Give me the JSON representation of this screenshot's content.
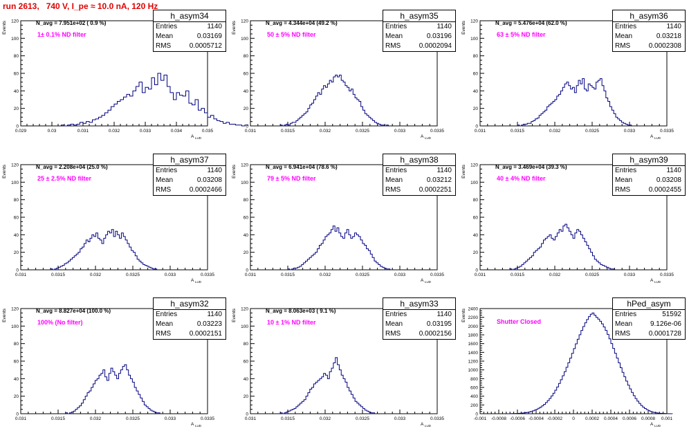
{
  "run_title": "run 2613,   740 V, I_pe ≈ 10.0 nA, 120 Hz",
  "colors": {
    "run_title": "#e00000",
    "filter_label": "#ff00ff",
    "histogram": "#000080"
  },
  "common": {
    "ylabel": "Events",
    "xlabel_main": "A",
    "xlabel_sub": "LUD"
  },
  "chart_data": [
    {
      "type": "bar",
      "name": "h_asym34",
      "navg": "N_avg = 7.951e+02 ( 0.9 %)",
      "filter": "1± 0.1% ND filter",
      "stats": {
        "entries": "1140",
        "mean": "0.03169",
        "rms": "0.0005712"
      },
      "xlim": [
        0.029,
        0.035
      ],
      "ylim": [
        0,
        120
      ],
      "xticks": [
        "0.029",
        "0.03",
        "0.031",
        "0.032",
        "0.033",
        "0.034",
        "0.035"
      ],
      "yticks": [
        "0",
        "20",
        "40",
        "60",
        "80",
        "100",
        "120"
      ],
      "bins": {
        "start": 0.0303,
        "width": 0.0001,
        "values": [
          1,
          0,
          1,
          2,
          1,
          2,
          4,
          3,
          5,
          4,
          7,
          8,
          10,
          12,
          15,
          18,
          22,
          25,
          28,
          30,
          33,
          36,
          34,
          40,
          45,
          50,
          38,
          44,
          42,
          55,
          47,
          60,
          52,
          58,
          45,
          38,
          30,
          38,
          35,
          34,
          40,
          26,
          24,
          30,
          18,
          20,
          15,
          10,
          12,
          8,
          6,
          5,
          3,
          4,
          2,
          2,
          1,
          1,
          0,
          1
        ]
      }
    },
    {
      "type": "bar",
      "name": "h_asym35",
      "navg": "N_avg = 4.344e+04 (49.2 %)",
      "filter": "50 ± 5% ND filter",
      "stats": {
        "entries": "1140",
        "mean": "0.03196",
        "rms": "0.0002094"
      },
      "xlim": [
        0.031,
        0.0335
      ],
      "ylim": [
        0,
        120
      ],
      "xticks": [
        "0.031",
        "0.0315",
        "0.032",
        "0.0325",
        "0.033",
        "0.0335"
      ],
      "yticks": [
        "0",
        "20",
        "40",
        "60",
        "80",
        "100",
        "120"
      ],
      "bins": {
        "start": 0.0314,
        "width": 2.63e-05,
        "values": [
          1,
          0,
          1,
          2,
          1,
          3,
          4,
          4,
          6,
          8,
          10,
          12,
          14,
          16,
          20,
          24,
          26,
          30,
          34,
          38,
          36,
          42,
          46,
          44,
          48,
          52,
          50,
          56,
          58,
          56,
          58,
          52,
          50,
          46,
          44,
          40,
          42,
          36,
          32,
          30,
          28,
          22,
          18,
          14,
          12,
          10,
          8,
          6,
          4,
          3,
          2,
          1,
          1,
          0,
          1
        ]
      }
    },
    {
      "type": "bar",
      "name": "h_asym36",
      "navg": "N_avg = 5.476e+04 (62.0 %)",
      "filter": "63 ± 5% ND filter",
      "stats": {
        "entries": "1140",
        "mean": "0.03218",
        "rms": "0.0002308"
      },
      "xlim": [
        0.031,
        0.0335
      ],
      "ylim": [
        0,
        120
      ],
      "xticks": [
        "0.031",
        "0.0315",
        "0.032",
        "0.0325",
        "0.033",
        "0.0335"
      ],
      "yticks": [
        "0",
        "20",
        "40",
        "60",
        "80",
        "100",
        "120"
      ],
      "bins": {
        "start": 0.0315,
        "width": 2.63e-05,
        "values": [
          1,
          0,
          1,
          2,
          2,
          3,
          3,
          5,
          6,
          8,
          9,
          12,
          14,
          16,
          18,
          22,
          24,
          26,
          28,
          30,
          34,
          36,
          40,
          44,
          48,
          50,
          46,
          42,
          44,
          38,
          46,
          52,
          48,
          54,
          42,
          40,
          48,
          46,
          44,
          42,
          50,
          52,
          54,
          46,
          40,
          32,
          28,
          22,
          18,
          14,
          10,
          8,
          6,
          4,
          3,
          2,
          1,
          1
        ]
      }
    },
    {
      "type": "bar",
      "name": "h_asym37",
      "navg": "N_avg = 2.208e+04 (25.0 %)",
      "filter": "25 ± 2.5% ND filter",
      "stats": {
        "entries": "1140",
        "mean": "0.03208",
        "rms": "0.0002466"
      },
      "xlim": [
        0.031,
        0.0335
      ],
      "ylim": [
        0,
        120
      ],
      "xticks": [
        "0.031",
        "0.0315",
        "0.032",
        "0.0325",
        "0.033",
        "0.0335"
      ],
      "yticks": [
        "0",
        "20",
        "40",
        "60",
        "80",
        "100",
        "120"
      ],
      "bins": {
        "start": 0.0314,
        "width": 2.63e-05,
        "values": [
          1,
          0,
          1,
          2,
          3,
          4,
          5,
          7,
          8,
          10,
          12,
          14,
          16,
          18,
          20,
          24,
          26,
          30,
          34,
          32,
          36,
          40,
          38,
          42,
          36,
          34,
          30,
          36,
          40,
          44,
          42,
          46,
          38,
          44,
          40,
          36,
          42,
          38,
          34,
          30,
          26,
          22,
          20,
          16,
          12,
          10,
          8,
          6,
          5,
          4,
          3,
          2,
          1,
          1
        ]
      }
    },
    {
      "type": "bar",
      "name": "h_asym38",
      "navg": "N_avg = 6.941e+04 (78.6 %)",
      "filter": "79 ± 5% ND filter",
      "stats": {
        "entries": "1140",
        "mean": "0.03212",
        "rms": "0.0002251"
      },
      "xlim": [
        0.031,
        0.0335
      ],
      "ylim": [
        0,
        120
      ],
      "xticks": [
        "0.031",
        "0.0315",
        "0.032",
        "0.0325",
        "0.033",
        "0.0335"
      ],
      "yticks": [
        "0",
        "20",
        "40",
        "60",
        "80",
        "100",
        "120"
      ],
      "bins": {
        "start": 0.0315,
        "width": 2.63e-05,
        "values": [
          1,
          0,
          1,
          2,
          2,
          3,
          4,
          6,
          8,
          10,
          12,
          14,
          16,
          18,
          20,
          24,
          28,
          30,
          34,
          38,
          40,
          42,
          46,
          50,
          44,
          48,
          42,
          38,
          36,
          42,
          46,
          40,
          36,
          38,
          42,
          40,
          38,
          34,
          30,
          28,
          24,
          22,
          18,
          14,
          10,
          8,
          6,
          4,
          3,
          2,
          1,
          1
        ]
      }
    },
    {
      "type": "bar",
      "name": "h_asym39",
      "navg": "N_avg = 3.469e+04 (39.3 %)",
      "filter": "40 ± 4% ND filter",
      "stats": {
        "entries": "1140",
        "mean": "0.03208",
        "rms": "0.0002455"
      },
      "xlim": [
        0.031,
        0.0335
      ],
      "ylim": [
        0,
        120
      ],
      "xticks": [
        "0.031",
        "0.0315",
        "0.032",
        "0.0325",
        "0.033",
        "0.0335"
      ],
      "yticks": [
        "0",
        "20",
        "40",
        "60",
        "80",
        "100",
        "120"
      ],
      "bins": {
        "start": 0.0314,
        "width": 2.63e-05,
        "values": [
          1,
          0,
          1,
          2,
          3,
          4,
          6,
          8,
          10,
          12,
          14,
          16,
          20,
          22,
          24,
          26,
          30,
          34,
          36,
          38,
          40,
          36,
          34,
          38,
          42,
          46,
          44,
          50,
          52,
          48,
          44,
          40,
          36,
          42,
          46,
          44,
          40,
          36,
          32,
          28,
          24,
          20,
          16,
          12,
          10,
          8,
          6,
          5,
          4,
          3,
          2,
          1,
          1
        ]
      }
    },
    {
      "type": "bar",
      "name": "h_asym32",
      "navg": "N_avg = 8.827e+04 (100.0 %)",
      "filter": "100% (No filter)",
      "stats": {
        "entries": "1140",
        "mean": "0.03223",
        "rms": "0.0002151"
      },
      "xlim": [
        0.031,
        0.0335
      ],
      "ylim": [
        0,
        120
      ],
      "xticks": [
        "0.031",
        "0.0315",
        "0.032",
        "0.0325",
        "0.033",
        "0.0335"
      ],
      "yticks": [
        "0",
        "20",
        "40",
        "60",
        "80",
        "100",
        "120"
      ],
      "bins": {
        "start": 0.0316,
        "width": 2.63e-05,
        "values": [
          1,
          0,
          1,
          2,
          3,
          5,
          7,
          9,
          12,
          16,
          20,
          24,
          26,
          30,
          34,
          38,
          40,
          44,
          46,
          50,
          42,
          38,
          46,
          52,
          48,
          44,
          40,
          46,
          50,
          54,
          56,
          50,
          44,
          40,
          36,
          30,
          26,
          22,
          18,
          14,
          10,
          8,
          6,
          4,
          3,
          2,
          1,
          1
        ]
      }
    },
    {
      "type": "bar",
      "name": "h_asym33",
      "navg": "N_avg = 8.063e+03 ( 9.1 %)",
      "filter": "10 ± 1% ND filter",
      "stats": {
        "entries": "1140",
        "mean": "0.03195",
        "rms": "0.0002156"
      },
      "xlim": [
        0.031,
        0.0335
      ],
      "ylim": [
        0,
        120
      ],
      "xticks": [
        "0.031",
        "0.0315",
        "0.032",
        "0.0325",
        "0.033",
        "0.0335"
      ],
      "yticks": [
        "0",
        "20",
        "40",
        "60",
        "80",
        "100",
        "120"
      ],
      "bins": {
        "start": 0.0314,
        "width": 2.63e-05,
        "values": [
          1,
          0,
          1,
          2,
          3,
          4,
          5,
          6,
          8,
          10,
          12,
          14,
          16,
          20,
          24,
          28,
          30,
          34,
          36,
          38,
          40,
          42,
          46,
          44,
          40,
          48,
          52,
          58,
          64,
          56,
          50,
          44,
          40,
          36,
          30,
          26,
          22,
          18,
          14,
          12,
          10,
          8,
          6,
          4,
          3,
          2,
          1,
          1
        ]
      }
    },
    {
      "type": "bar",
      "name": "hPed_asym",
      "navg": "",
      "filter": "Shutter Closed",
      "stats": {
        "entries": "51592",
        "mean": "9.126e-06",
        "rms": "0.0001728"
      },
      "xlim": [
        -0.001,
        0.001
      ],
      "ylim": [
        0,
        2400
      ],
      "xticks": [
        "-0.001",
        "-0.0008",
        "-0.0006",
        "-0.0004",
        "-0.0002",
        "0",
        "0.0002",
        "0.0004",
        "0.0006",
        "0.0008",
        "0.001"
      ],
      "yticks": [
        "0",
        "200",
        "400",
        "600",
        "800",
        "1000",
        "1200",
        "1400",
        "1600",
        "1800",
        "2000",
        "2200",
        "2400"
      ],
      "bins": {
        "start": -0.0007,
        "width": 2e-05,
        "values": [
          1,
          2,
          3,
          4,
          6,
          8,
          10,
          14,
          18,
          24,
          30,
          40,
          52,
          66,
          82,
          100,
          124,
          150,
          180,
          214,
          254,
          300,
          350,
          406,
          468,
          536,
          610,
          690,
          776,
          866,
          960,
          1060,
          1164,
          1270,
          1378,
          1486,
          1594,
          1700,
          1802,
          1900,
          1990,
          2074,
          2150,
          2216,
          2270,
          2300,
          2250,
          2200,
          2160,
          2110,
          2050,
          1980,
          1900,
          1810,
          1710,
          1600,
          1490,
          1380,
          1270,
          1160,
          1050,
          944,
          842,
          744,
          652,
          566,
          486,
          412,
          346,
          286,
          234,
          188,
          150,
          118,
          92,
          70,
          52,
          38,
          28,
          20,
          14,
          10,
          7,
          5,
          3,
          2,
          1,
          1
        ]
      }
    }
  ]
}
